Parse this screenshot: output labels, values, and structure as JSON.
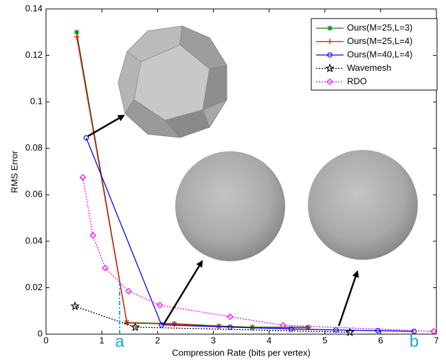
{
  "chart_data": {
    "type": "line",
    "x_label": "Compression Rate (bits per vertex)",
    "y_label": "RMS Error",
    "xlim": [
      0,
      7
    ],
    "xticks": [
      0,
      1,
      2,
      3,
      4,
      5,
      6,
      7
    ],
    "ylim": [
      0,
      0.14
    ],
    "yticks": [
      0,
      0.02,
      0.04,
      0.06,
      0.08,
      0.1,
      0.12,
      0.14
    ],
    "legend": "upper right",
    "series": [
      {
        "name": "Ours(M=25,L=3)",
        "color": "#008000",
        "linestyle": "solid",
        "marker": "asterisk",
        "x": [
          0.55,
          1.45,
          2.3,
          3.1,
          3.7,
          4.7
        ],
        "values": [
          0.13,
          0.005,
          0.0045,
          0.0035,
          0.003,
          0.003
        ]
      },
      {
        "name": "Ours(M=25,L=4)",
        "color": "#ff0000",
        "linestyle": "solid",
        "marker": "plus",
        "x": [
          0.55,
          1.45,
          2.3,
          3.1,
          3.7,
          4.7
        ],
        "values": [
          0.128,
          0.0048,
          0.0043,
          0.0033,
          0.0028,
          0.0028
        ]
      },
      {
        "name": "Ours(M=40,L=4)",
        "color": "#0000ff",
        "linestyle": "solid",
        "marker": "circle",
        "x": [
          0.72,
          2.07,
          3.3,
          4.4,
          5.2,
          5.95,
          6.6
        ],
        "values": [
          0.0845,
          0.004,
          0.003,
          0.0022,
          0.0018,
          0.0015,
          0.0012
        ]
      },
      {
        "name": "Wavemesh",
        "color": "#000000",
        "linestyle": "dotted",
        "marker": "star",
        "x": [
          0.52,
          1.6,
          5.45
        ],
        "values": [
          0.012,
          0.003,
          0.0008
        ]
      },
      {
        "name": "RDO",
        "color": "#ff00ff",
        "linestyle": "dotted",
        "marker": "diamond",
        "x": [
          0.66,
          0.84,
          1.06,
          1.48,
          2.04,
          3.3,
          4.25,
          6.95
        ],
        "values": [
          0.0675,
          0.0425,
          0.0285,
          0.0185,
          0.0125,
          0.0075,
          0.0038,
          0.0012
        ]
      }
    ],
    "annotations": [
      {
        "text": "a",
        "x": 1.32,
        "line_to": 0.023,
        "color": "#1aa6d8"
      },
      {
        "text": "b",
        "x": 6.6,
        "color": "#1aa6d8"
      }
    ]
  }
}
